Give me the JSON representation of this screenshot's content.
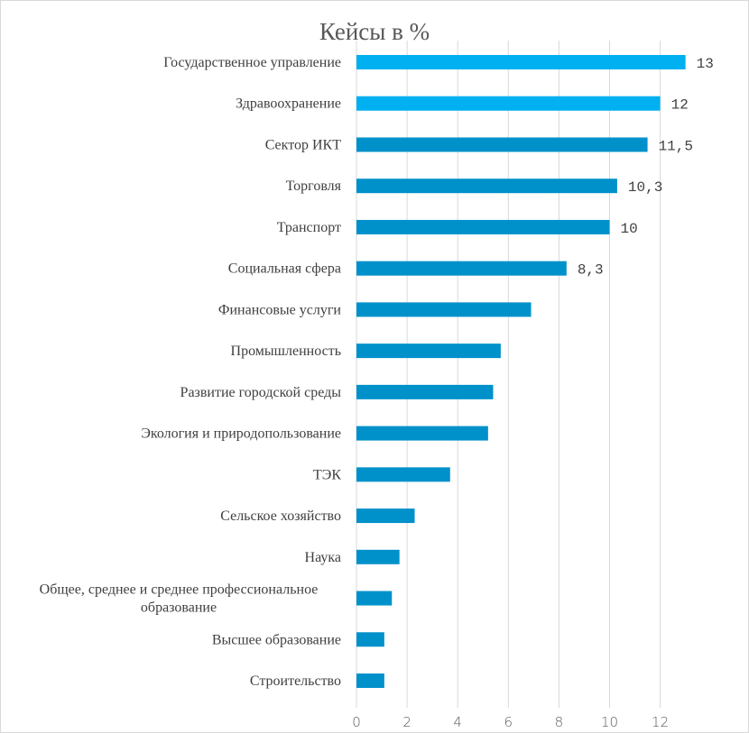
{
  "chart_data": {
    "type": "bar",
    "orientation": "horizontal",
    "title": "Кейсы в %",
    "xlabel": "",
    "ylabel": "",
    "xlim": [
      0,
      12
    ],
    "ticks": [
      0,
      2,
      4,
      6,
      8,
      10,
      12
    ],
    "tick_labels": [
      "0",
      "2",
      "4",
      "6",
      "8",
      "10",
      "12"
    ],
    "grid": true,
    "categories": [
      [
        "Государственное управление"
      ],
      [
        "Здравоохранение"
      ],
      [
        "Сектор ИКТ"
      ],
      [
        "Торговля"
      ],
      [
        "Транспорт"
      ],
      [
        "Социальная сфера"
      ],
      [
        "Финансовые услуги"
      ],
      [
        "Промышленность"
      ],
      [
        "Развитие городской среды"
      ],
      [
        "Экология и природопользование"
      ],
      [
        "ТЭК"
      ],
      [
        "Сельское хозяйство"
      ],
      [
        "Наука"
      ],
      [
        "Общее, среднее и среднее профессиональное",
        "образование"
      ],
      [
        "Высшее образование"
      ],
      [
        "Строительство"
      ]
    ],
    "values": [
      13,
      12,
      11.5,
      10.3,
      10,
      8.3,
      6.9,
      5.7,
      5.4,
      5.2,
      3.7,
      2.3,
      1.7,
      1.4,
      1.1,
      1.1
    ],
    "data_labels": [
      "13",
      "12",
      "11,5",
      "10,3",
      "10",
      "8,3",
      "",
      "",
      "",
      "",
      "",
      "",
      "",
      "",
      "",
      ""
    ],
    "highlight_color": "#00B0F0",
    "bar_color": "#0091CA",
    "highlighted_count": 2
  }
}
